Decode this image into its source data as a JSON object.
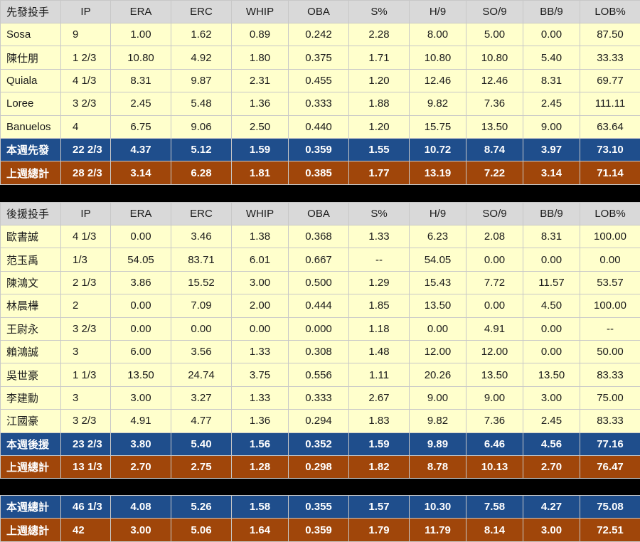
{
  "columns": [
    "IP",
    "ERA",
    "ERC",
    "WHIP",
    "OBA",
    "S%",
    "H/9",
    "SO/9",
    "BB/9",
    "LOB%"
  ],
  "starters": {
    "header_label": "先發投手",
    "rows": [
      {
        "name": "Sosa",
        "values": [
          "9",
          "1.00",
          "1.62",
          "0.89",
          "0.242",
          "2.28",
          "8.00",
          "5.00",
          "0.00",
          "87.50"
        ]
      },
      {
        "name": "陳仕朋",
        "values": [
          "1 2/3",
          "10.80",
          "4.92",
          "1.80",
          "0.375",
          "1.71",
          "10.80",
          "10.80",
          "5.40",
          "33.33"
        ]
      },
      {
        "name": "Quiala",
        "values": [
          "4 1/3",
          "8.31",
          "9.87",
          "2.31",
          "0.455",
          "1.20",
          "12.46",
          "12.46",
          "8.31",
          "69.77"
        ]
      },
      {
        "name": "Loree",
        "values": [
          "3 2/3",
          "2.45",
          "5.48",
          "1.36",
          "0.333",
          "1.88",
          "9.82",
          "7.36",
          "2.45",
          "111.11"
        ]
      },
      {
        "name": "Banuelos",
        "values": [
          "4",
          "6.75",
          "9.06",
          "2.50",
          "0.440",
          "1.20",
          "15.75",
          "13.50",
          "9.00",
          "63.64"
        ]
      }
    ],
    "this_week": {
      "name": "本週先發",
      "values": [
        "22 2/3",
        "4.37",
        "5.12",
        "1.59",
        "0.359",
        "1.55",
        "10.72",
        "8.74",
        "3.97",
        "73.10"
      ]
    },
    "last_week": {
      "name": "上週總計",
      "values": [
        "28 2/3",
        "3.14",
        "6.28",
        "1.81",
        "0.385",
        "1.77",
        "13.19",
        "7.22",
        "3.14",
        "71.14"
      ]
    }
  },
  "relievers": {
    "header_label": "後援投手",
    "rows": [
      {
        "name": "歐書誠",
        "values": [
          "4 1/3",
          "0.00",
          "3.46",
          "1.38",
          "0.368",
          "1.33",
          "6.23",
          "2.08",
          "8.31",
          "100.00"
        ]
      },
      {
        "name": "范玉禹",
        "values": [
          "1/3",
          "54.05",
          "83.71",
          "6.01",
          "0.667",
          "--",
          "54.05",
          "0.00",
          "0.00",
          "0.00"
        ]
      },
      {
        "name": "陳鴻文",
        "values": [
          "2 1/3",
          "3.86",
          "15.52",
          "3.00",
          "0.500",
          "1.29",
          "15.43",
          "7.72",
          "11.57",
          "53.57"
        ]
      },
      {
        "name": "林晨樺",
        "values": [
          "2",
          "0.00",
          "7.09",
          "2.00",
          "0.444",
          "1.85",
          "13.50",
          "0.00",
          "4.50",
          "100.00"
        ]
      },
      {
        "name": "王尉永",
        "values": [
          "3 2/3",
          "0.00",
          "0.00",
          "0.00",
          "0.000",
          "1.18",
          "0.00",
          "4.91",
          "0.00",
          "--"
        ]
      },
      {
        "name": "賴鴻誠",
        "values": [
          "3",
          "6.00",
          "3.56",
          "1.33",
          "0.308",
          "1.48",
          "12.00",
          "12.00",
          "0.00",
          "50.00"
        ]
      },
      {
        "name": "吳世豪",
        "values": [
          "1 1/3",
          "13.50",
          "24.74",
          "3.75",
          "0.556",
          "1.11",
          "20.26",
          "13.50",
          "13.50",
          "83.33"
        ]
      },
      {
        "name": "李建勳",
        "values": [
          "3",
          "3.00",
          "3.27",
          "1.33",
          "0.333",
          "2.67",
          "9.00",
          "9.00",
          "3.00",
          "75.00"
        ]
      },
      {
        "name": "江國豪",
        "values": [
          "3 2/3",
          "4.91",
          "4.77",
          "1.36",
          "0.294",
          "1.83",
          "9.82",
          "7.36",
          "2.45",
          "83.33"
        ]
      }
    ],
    "this_week": {
      "name": "本週後援",
      "values": [
        "23 2/3",
        "3.80",
        "5.40",
        "1.56",
        "0.352",
        "1.59",
        "9.89",
        "6.46",
        "4.56",
        "77.16"
      ]
    },
    "last_week": {
      "name": "上週總計",
      "values": [
        "13 1/3",
        "2.70",
        "2.75",
        "1.28",
        "0.298",
        "1.82",
        "8.78",
        "10.13",
        "2.70",
        "76.47"
      ]
    }
  },
  "overall": {
    "this_week": {
      "name": "本週總計",
      "values": [
        "46 1/3",
        "4.08",
        "5.26",
        "1.58",
        "0.355",
        "1.57",
        "10.30",
        "7.58",
        "4.27",
        "75.08"
      ]
    },
    "last_week": {
      "name": "上週總計",
      "values": [
        "42",
        "3.00",
        "5.06",
        "1.64",
        "0.359",
        "1.79",
        "11.79",
        "8.14",
        "3.00",
        "72.51"
      ]
    }
  },
  "colors": {
    "header_bg": "#d9d9d9",
    "row_bg": "#ffffcc",
    "this_week_bg": "#1f4e8c",
    "last_week_bg": "#a0460a",
    "separator": "#000000"
  }
}
